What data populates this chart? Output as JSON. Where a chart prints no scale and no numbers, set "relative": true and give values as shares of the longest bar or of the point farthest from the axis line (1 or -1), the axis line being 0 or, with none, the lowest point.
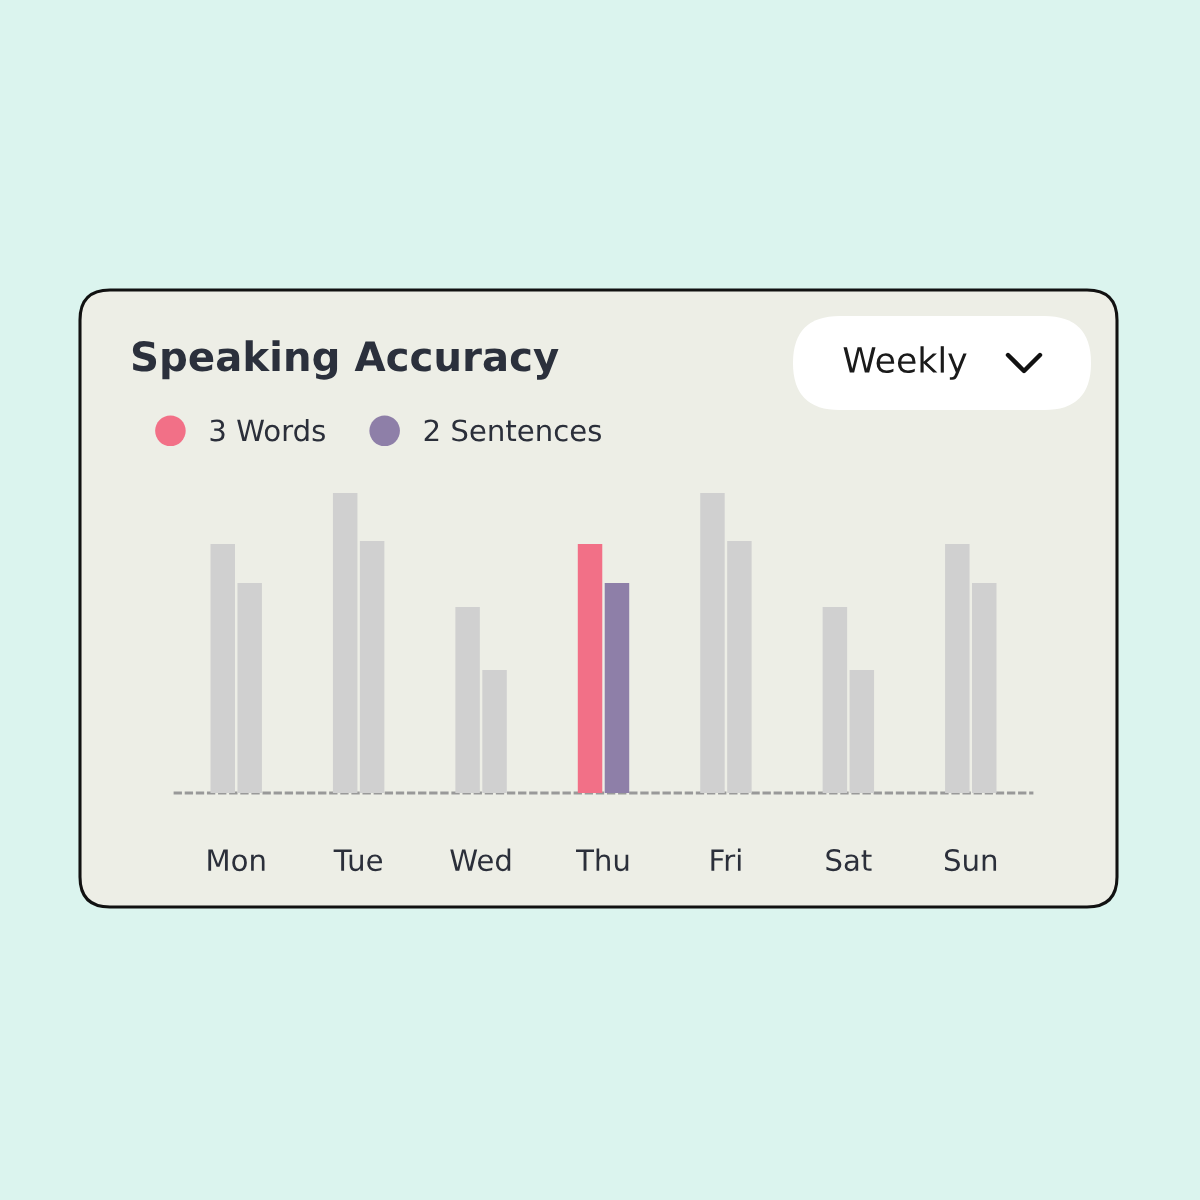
{
  "chart_data": {
    "type": "bar",
    "title": "Speaking Accuracy",
    "relative": true,
    "categories": [
      "Mon",
      "Tue",
      "Wed",
      "Thu",
      "Fri",
      "Sat",
      "Sun"
    ],
    "series": [
      {
        "name": "3 Words",
        "color": "#f27087",
        "colors": [
          "#d0d0d0",
          "#d0d0d0",
          "#d0d0d0",
          "#f27087",
          "#d0d0d0",
          "#d0d0d0",
          "#d0d0d0"
        ],
        "values": [
          0.83,
          1,
          0.62,
          0.83,
          1,
          0.62,
          0.83
        ]
      },
      {
        "name": "2 Sentences",
        "color": "#8e7fa8",
        "colors": [
          "#d0d0d0",
          "#d0d0d0",
          "#d0d0d0",
          "#8e7fa8",
          "#d0d0d0",
          "#d0d0d0",
          "#d0d0d0"
        ],
        "values": [
          0.7,
          0.84,
          0.41,
          0.7,
          0.84,
          0.41,
          0.7
        ]
      }
    ],
    "legend": "top left",
    "annotations": [
      "Weekly"
    ]
  }
}
